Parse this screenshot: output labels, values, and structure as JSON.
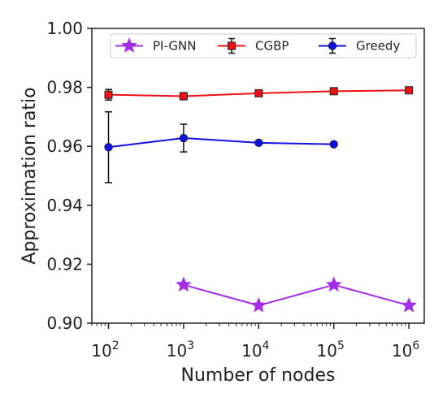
{
  "chart_data": {
    "type": "line",
    "title": "",
    "xlabel": "Number of nodes",
    "ylabel": "Approximation ratio",
    "xscale": "log",
    "xlim": [
      60,
      1600000
    ],
    "ylim": [
      0.9,
      1.0
    ],
    "yticks": [
      "0.90",
      "0.92",
      "0.94",
      "0.96",
      "0.98",
      "1.00"
    ],
    "xticks": [
      {
        "value": 100,
        "base": "10",
        "exp": "2"
      },
      {
        "value": 1000,
        "base": "10",
        "exp": "3"
      },
      {
        "value": 10000,
        "base": "10",
        "exp": "4"
      },
      {
        "value": 100000,
        "base": "10",
        "exp": "5"
      },
      {
        "value": 1000000,
        "base": "10",
        "exp": "6"
      }
    ],
    "grid": false,
    "legend_position": "top",
    "series": [
      {
        "name": "PI-GNN",
        "color": "#a42ee8",
        "marker": "star",
        "x": [
          1000,
          10000,
          100000,
          1000000
        ],
        "y": [
          0.913,
          0.906,
          0.913,
          0.906
        ]
      },
      {
        "name": "CGBP",
        "color": "#ee1111",
        "marker": "square",
        "x": [
          100,
          1000,
          10000,
          100000,
          1000000
        ],
        "y": [
          0.9775,
          0.977,
          0.978,
          0.9787,
          0.979
        ],
        "err": [
          0.0018,
          0.0012,
          0.0008,
          0.0005,
          0.0004
        ]
      },
      {
        "name": "Greedy",
        "color": "#1010e0",
        "marker": "circle",
        "x": [
          100,
          1000,
          10000,
          100000
        ],
        "y": [
          0.9597,
          0.9628,
          0.9612,
          0.9607
        ],
        "err": [
          0.012,
          0.0047,
          0.0004,
          0.0003
        ]
      }
    ]
  }
}
